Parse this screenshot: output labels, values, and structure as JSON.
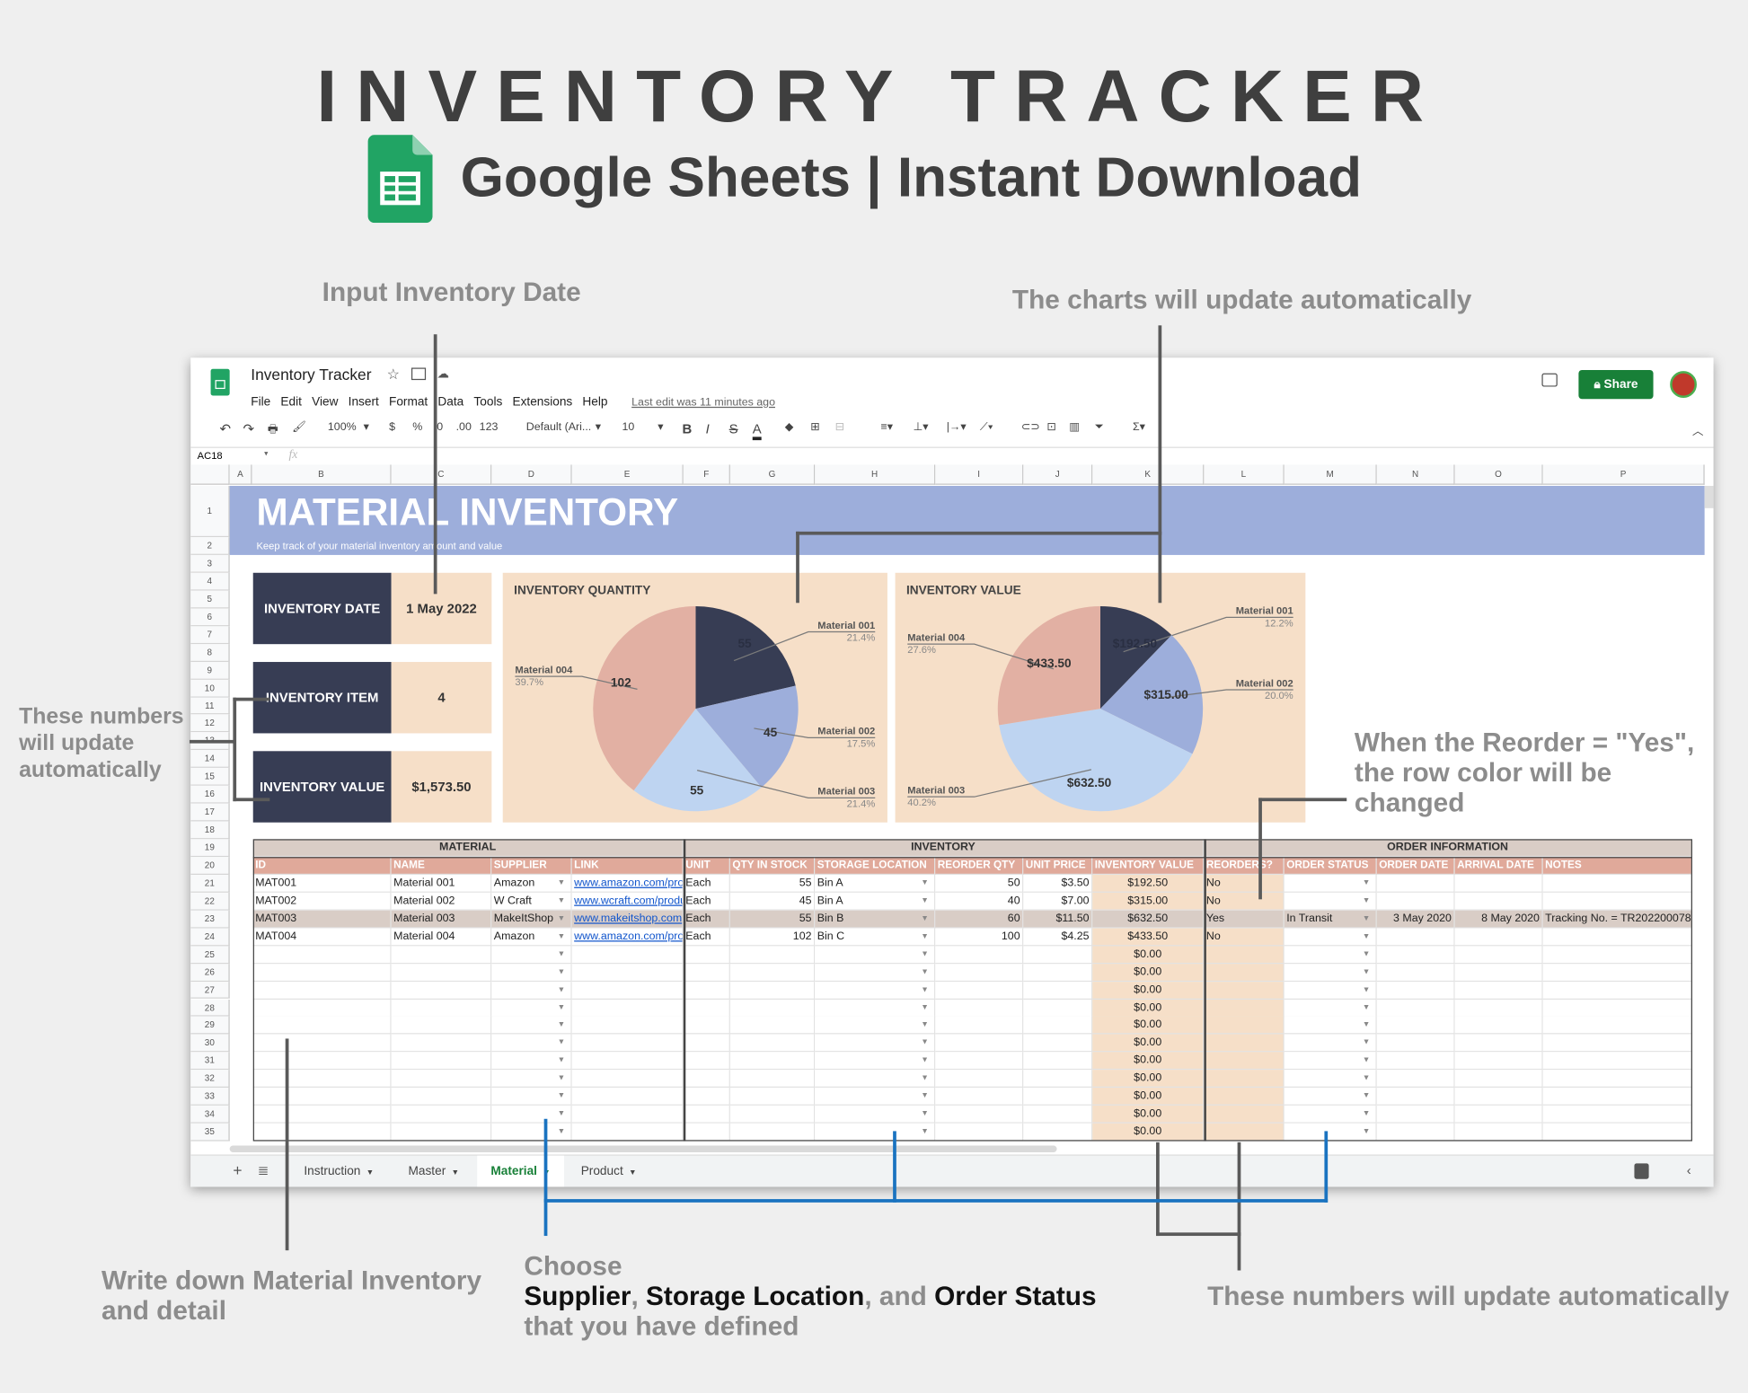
{
  "hero": {
    "title": "INVENTORY TRACKER",
    "subtitle": "Google Sheets | Instant Download"
  },
  "annotations": {
    "input_date": "Input Inventory Date",
    "charts_update": "The charts will update automatically",
    "left_numbers": [
      "These numbers",
      "will update",
      "automatically"
    ],
    "reorder": [
      "When the Reorder = \"Yes\",",
      "the row color will be",
      "changed"
    ],
    "write_down": [
      "Write down Material Inventory",
      "and detail"
    ],
    "choose": {
      "line1": "Choose",
      "supplier": "Supplier",
      "sep1": ", ",
      "storage": "Storage Location",
      "sep2": ", and ",
      "status": "Order Status",
      "line3": "that you have defined"
    },
    "bottom_numbers": "These numbers will update automatically"
  },
  "window": {
    "doc_title": "Inventory Tracker",
    "menu": [
      "File",
      "Edit",
      "View",
      "Insert",
      "Format",
      "Data",
      "Tools",
      "Extensions",
      "Help"
    ],
    "last_edit": "Last edit was 11 minutes ago",
    "share": "Share",
    "toolbar": {
      "zoom": "100%",
      "currency": "$",
      "percent": "%",
      "dec_less": ".0",
      "dec_more": ".00",
      "format": "123",
      "font": "Default (Ari...",
      "size": "10",
      "bold": "B",
      "italic": "I",
      "strike": "S",
      "color": "A"
    },
    "cell_ref": "AC18",
    "fx": "fx",
    "columns": [
      "A",
      "B",
      "C",
      "D",
      "E",
      "F",
      "G",
      "H",
      "I",
      "J",
      "K",
      "L",
      "M",
      "N",
      "O",
      "P"
    ],
    "rows": [
      "1",
      "2",
      "3",
      "4",
      "5",
      "6",
      "7",
      "8",
      "9",
      "10",
      "11",
      "12",
      "13",
      "14",
      "15",
      "16",
      "17",
      "18",
      "19",
      "20",
      "21",
      "22",
      "23",
      "24",
      "25",
      "26",
      "27",
      "28",
      "29",
      "30",
      "31",
      "32",
      "33",
      "34",
      "35"
    ],
    "tabs": [
      {
        "label": "Instruction",
        "active": false
      },
      {
        "label": "Master",
        "active": false
      },
      {
        "label": "Material",
        "active": true
      },
      {
        "label": "Product",
        "active": false
      }
    ]
  },
  "sheet": {
    "banner_title": "MATERIAL INVENTORY",
    "banner_subtitle": "Keep track of your material inventory amount and value",
    "summary": [
      {
        "label": "INVENTORY DATE",
        "value": "1 May 2022"
      },
      {
        "label": "INVENTORY ITEM",
        "value": "4"
      },
      {
        "label": "INVENTORY VALUE",
        "value": "$1,573.50"
      }
    ],
    "colors": {
      "dark": "#373d54",
      "peach": "#f6dfc8",
      "banner": "#9daedb",
      "header": "#e0a99a",
      "highlight_row": "#d9cdc6"
    },
    "sections": [
      "MATERIAL",
      "INVENTORY",
      "ORDER INFORMATION"
    ],
    "headers": [
      "ID",
      "NAME",
      "SUPPLIER",
      "LINK",
      "UNIT",
      "QTY IN STOCK",
      "STORAGE LOCATION",
      "REORDER QTY",
      "UNIT PRICE",
      "INVENTORY VALUE",
      "REORDERS?",
      "ORDER STATUS",
      "ORDER DATE",
      "ARRIVAL DATE",
      "NOTES"
    ],
    "rows": [
      {
        "cells": [
          "MAT001",
          "Material 001",
          "Amazon",
          "www.amazon.com/pro",
          "Each",
          "55",
          "Bin A",
          "50",
          "$3.50",
          "$192.50",
          "No",
          "",
          "",
          "",
          ""
        ],
        "highlight": false
      },
      {
        "cells": [
          "MAT002",
          "Material 002",
          "W Craft",
          "www.wcraft.com/produ",
          "Each",
          "45",
          "Bin A",
          "40",
          "$7.00",
          "$315.00",
          "No",
          "",
          "",
          "",
          ""
        ],
        "highlight": false
      },
      {
        "cells": [
          "MAT003",
          "Material 003",
          "MakeItShop",
          "www.makeitshop.com",
          "Each",
          "55",
          "Bin B",
          "60",
          "$11.50",
          "$632.50",
          "Yes",
          "In Transit",
          "3 May 2020",
          "8 May 2020",
          "Tracking No. = TR202200078"
        ],
        "highlight": true
      },
      {
        "cells": [
          "MAT004",
          "Material 004",
          "Amazon",
          "www.amazon.com/pro",
          "Each",
          "102",
          "Bin C",
          "100",
          "$4.25",
          "$433.50",
          "No",
          "",
          "",
          "",
          ""
        ],
        "highlight": false
      },
      {
        "cells": [
          "",
          "",
          "",
          "",
          "",
          "",
          "",
          "",
          "",
          "$0.00",
          "",
          "",
          "",
          "",
          ""
        ],
        "highlight": false
      },
      {
        "cells": [
          "",
          "",
          "",
          "",
          "",
          "",
          "",
          "",
          "",
          "$0.00",
          "",
          "",
          "",
          "",
          ""
        ],
        "highlight": false
      },
      {
        "cells": [
          "",
          "",
          "",
          "",
          "",
          "",
          "",
          "",
          "",
          "$0.00",
          "",
          "",
          "",
          "",
          ""
        ],
        "highlight": false
      },
      {
        "cells": [
          "",
          "",
          "",
          "",
          "",
          "",
          "",
          "",
          "",
          "$0.00",
          "",
          "",
          "",
          "",
          ""
        ],
        "highlight": false
      },
      {
        "cells": [
          "",
          "",
          "",
          "",
          "",
          "",
          "",
          "",
          "",
          "$0.00",
          "",
          "",
          "",
          "",
          ""
        ],
        "highlight": false
      },
      {
        "cells": [
          "",
          "",
          "",
          "",
          "",
          "",
          "",
          "",
          "",
          "$0.00",
          "",
          "",
          "",
          "",
          ""
        ],
        "highlight": false
      },
      {
        "cells": [
          "",
          "",
          "",
          "",
          "",
          "",
          "",
          "",
          "",
          "$0.00",
          "",
          "",
          "",
          "",
          ""
        ],
        "highlight": false
      },
      {
        "cells": [
          "",
          "",
          "",
          "",
          "",
          "",
          "",
          "",
          "",
          "$0.00",
          "",
          "",
          "",
          "",
          ""
        ],
        "highlight": false
      },
      {
        "cells": [
          "",
          "",
          "",
          "",
          "",
          "",
          "",
          "",
          "",
          "$0.00",
          "",
          "",
          "",
          "",
          ""
        ],
        "highlight": false
      },
      {
        "cells": [
          "",
          "",
          "",
          "",
          "",
          "",
          "",
          "",
          "",
          "$0.00",
          "",
          "",
          "",
          "",
          ""
        ],
        "highlight": false
      },
      {
        "cells": [
          "",
          "",
          "",
          "",
          "",
          "",
          "",
          "",
          "",
          "$0.00",
          "",
          "",
          "",
          "",
          ""
        ],
        "highlight": false
      }
    ]
  },
  "chart_data": [
    {
      "type": "pie",
      "title": "INVENTORY QUANTITY",
      "categories": [
        "Material 001",
        "Material 002",
        "Material 003",
        "Material 004"
      ],
      "values": [
        55,
        45,
        55,
        102
      ],
      "value_labels": [
        "55",
        "45",
        "55",
        "102"
      ],
      "percent_labels": [
        "21.4%",
        "17.5%",
        "21.4%",
        "39.7%"
      ],
      "colors": [
        "#373d54",
        "#9daedb",
        "#bed4f1",
        "#e2b0a3"
      ]
    },
    {
      "type": "pie",
      "title": "INVENTORY VALUE",
      "categories": [
        "Material 001",
        "Material 002",
        "Material 003",
        "Material 004"
      ],
      "values": [
        192.5,
        315.0,
        632.5,
        433.5
      ],
      "value_labels": [
        "$192.50",
        "$315.00",
        "$632.50",
        "$433.50"
      ],
      "percent_labels": [
        "12.2%",
        "20.0%",
        "40.2%",
        "27.6%"
      ],
      "colors": [
        "#373d54",
        "#9daedb",
        "#bed4f1",
        "#e2b0a3"
      ]
    }
  ]
}
